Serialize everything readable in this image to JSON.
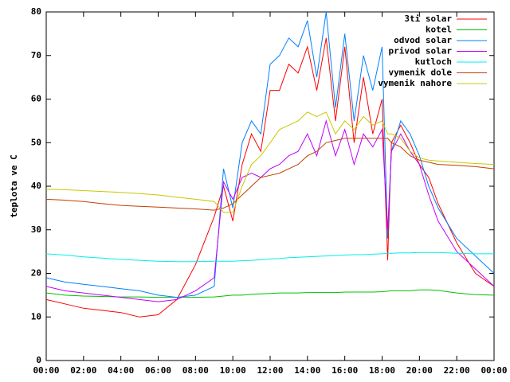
{
  "chart_data": {
    "type": "line",
    "ylabel": "teplota ve C",
    "x": [
      0,
      1,
      2,
      3,
      4,
      5,
      6,
      7,
      8,
      9,
      9.5,
      10,
      10.5,
      11,
      11.5,
      12,
      12.5,
      13,
      13.5,
      14,
      14.5,
      15,
      15.5,
      16,
      16.5,
      17,
      17.5,
      18,
      18.3,
      18.5,
      19,
      19.5,
      20,
      20.5,
      21,
      22,
      23,
      24
    ],
    "xlim": [
      0,
      24
    ],
    "xticks": [
      {
        "value": 0,
        "label": "00:00"
      },
      {
        "value": 2,
        "label": "02:00"
      },
      {
        "value": 4,
        "label": "04:00"
      },
      {
        "value": 6,
        "label": "06:00"
      },
      {
        "value": 8,
        "label": "08:00"
      },
      {
        "value": 10,
        "label": "10:00"
      },
      {
        "value": 12,
        "label": "12:00"
      },
      {
        "value": 14,
        "label": "14:00"
      },
      {
        "value": 16,
        "label": "16:00"
      },
      {
        "value": 18,
        "label": "18:00"
      },
      {
        "value": 20,
        "label": "20:00"
      },
      {
        "value": 22,
        "label": "22:00"
      },
      {
        "value": 24,
        "label": "00:00"
      }
    ],
    "ylim": [
      0,
      80
    ],
    "yticks": [
      0,
      10,
      20,
      30,
      40,
      50,
      60,
      70,
      80
    ],
    "legend": "top-right",
    "series": [
      {
        "name": "3ti solar",
        "color": "#ff0000",
        "values": [
          14,
          13,
          12,
          11.5,
          11,
          10,
          10.5,
          14,
          22,
          33,
          40,
          32,
          45,
          52,
          48,
          62,
          62,
          68,
          66,
          72,
          62,
          74,
          55,
          72,
          50,
          65,
          52,
          60,
          23,
          50,
          54,
          50,
          45,
          42,
          36,
          27,
          20,
          17
        ]
      },
      {
        "name": "kotel",
        "color": "#00c000",
        "values": [
          15.5,
          15,
          14.8,
          14.7,
          14.6,
          14.6,
          14.5,
          14.5,
          14.5,
          14.6,
          14.8,
          15,
          15,
          15.2,
          15.3,
          15.4,
          15.5,
          15.5,
          15.5,
          15.6,
          15.6,
          15.6,
          15.6,
          15.7,
          15.7,
          15.7,
          15.7,
          15.8,
          15.9,
          16,
          16,
          16,
          16.2,
          16.2,
          16.1,
          15.5,
          15.1,
          15
        ]
      },
      {
        "name": "odvod solar",
        "color": "#0080ff",
        "values": [
          19,
          18,
          17.5,
          17,
          16.5,
          16,
          15,
          14.5,
          15,
          17,
          44,
          35,
          50,
          55,
          52,
          68,
          70,
          74,
          72,
          78,
          65,
          80,
          58,
          75,
          55,
          70,
          62,
          72,
          28,
          48,
          55,
          52,
          47,
          40,
          35,
          28,
          24,
          20
        ]
      },
      {
        "name": "privod solar",
        "color": "#c000ff",
        "values": [
          17,
          16,
          15.5,
          15,
          14.5,
          14,
          13.5,
          14,
          16,
          19,
          41,
          37,
          42,
          43,
          42,
          44,
          45,
          47,
          48,
          52,
          47,
          55,
          47,
          53,
          45,
          52,
          49,
          53,
          30,
          48,
          52,
          48,
          45,
          38,
          32,
          25,
          21,
          17
        ]
      },
      {
        "name": "kutloch",
        "color": "#00eeee",
        "values": [
          24.5,
          24.2,
          23.8,
          23.5,
          23.2,
          23,
          22.8,
          22.7,
          22.7,
          22.8,
          22.8,
          22.8,
          22.9,
          23,
          23.1,
          23.3,
          23.4,
          23.6,
          23.7,
          23.8,
          23.9,
          24,
          24.1,
          24.2,
          24.3,
          24.3,
          24.4,
          24.5,
          24.6,
          24.6,
          24.7,
          24.7,
          24.8,
          24.8,
          24.8,
          24.6,
          24.5,
          24.5
        ]
      },
      {
        "name": "vymenik dole",
        "color": "#c04000",
        "values": [
          37,
          36.8,
          36.5,
          36,
          35.6,
          35.4,
          35.2,
          35,
          34.8,
          34.5,
          35,
          36,
          38,
          40,
          42,
          42.5,
          43,
          44,
          45,
          47,
          48,
          50,
          50.5,
          51,
          51,
          51,
          51,
          51,
          51,
          50,
          49,
          47,
          46,
          45.5,
          45,
          44.8,
          44.5,
          44
        ]
      },
      {
        "name": "vymenik nahore",
        "color": "#c8c800",
        "values": [
          39.3,
          39.2,
          39,
          38.8,
          38.6,
          38.3,
          38,
          37.5,
          37,
          36.5,
          34,
          34,
          40,
          45,
          47,
          50,
          53,
          54,
          55,
          57,
          56,
          57,
          52,
          55,
          53,
          56,
          54,
          55,
          52,
          52,
          51,
          48,
          46.5,
          46,
          45.8,
          45.5,
          45.2,
          45
        ]
      }
    ]
  }
}
